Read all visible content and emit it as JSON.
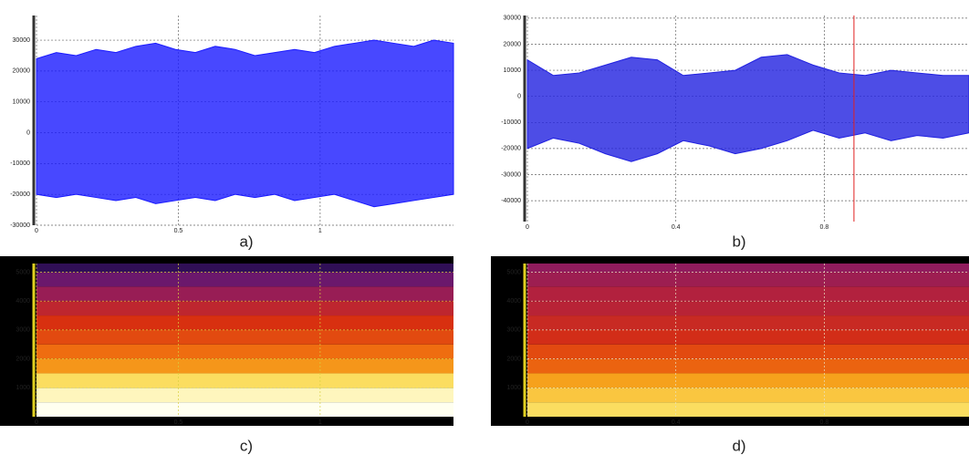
{
  "chart_data": [
    {
      "type": "waveform",
      "caption": "a)",
      "color": "#1a1aff",
      "x": [
        0,
        0.07,
        0.14,
        0.21,
        0.28,
        0.35,
        0.42,
        0.49,
        0.56,
        0.63,
        0.7,
        0.77,
        0.84,
        0.91,
        0.98,
        1.05,
        1.12,
        1.19,
        1.26,
        1.33,
        1.4,
        1.47
      ],
      "upper": [
        24000,
        26000,
        25000,
        27000,
        26000,
        28000,
        29000,
        27000,
        26000,
        28000,
        27000,
        25000,
        26000,
        27000,
        26000,
        28000,
        29000,
        30000,
        29000,
        28000,
        30000,
        29000
      ],
      "lower": [
        -20000,
        -21000,
        -20000,
        -21000,
        -22000,
        -21000,
        -23000,
        -22000,
        -21000,
        -22000,
        -20000,
        -21000,
        -20000,
        -22000,
        -21000,
        -20000,
        -22000,
        -24000,
        -23000,
        -22000,
        -21000,
        -20000
      ],
      "xlim": [
        0,
        1.47
      ],
      "xticks": [
        0,
        0.5,
        1
      ],
      "ylim": [
        -30000,
        38000
      ],
      "yticks": [
        -30000,
        -20000,
        -10000,
        0,
        10000,
        20000,
        30000
      ],
      "grid": true
    },
    {
      "type": "waveform",
      "caption": "b)",
      "color": "#2020e0",
      "x": [
        0,
        0.07,
        0.14,
        0.21,
        0.28,
        0.35,
        0.42,
        0.49,
        0.56,
        0.63,
        0.7,
        0.77,
        0.84,
        0.91,
        0.98,
        1.05,
        1.12,
        1.19
      ],
      "upper": [
        14000,
        8000,
        9000,
        12000,
        15000,
        14000,
        8000,
        9000,
        10000,
        15000,
        16000,
        12000,
        9000,
        8000,
        10000,
        9000,
        8000,
        8000
      ],
      "lower": [
        -20000,
        -16000,
        -18000,
        -22000,
        -25000,
        -22000,
        -17000,
        -19000,
        -22000,
        -20000,
        -17000,
        -13000,
        -16000,
        -14000,
        -17000,
        -15000,
        -16000,
        -14000
      ],
      "cursor": 0.88,
      "cursor_color": "#e02020",
      "xlim": [
        0,
        1.19
      ],
      "xticks": [
        0,
        0.4,
        0.8
      ],
      "ylim": [
        -48000,
        31000
      ],
      "yticks": [
        -40000,
        -30000,
        -20000,
        -10000,
        0,
        10000,
        20000,
        30000
      ],
      "grid": true
    },
    {
      "type": "spectrogram",
      "caption": "c)",
      "grid_color": "#d8d040",
      "colormap": [
        "#0a0a30",
        "#3a1060",
        "#7a1a70",
        "#b02040",
        "#d83010",
        "#f07010",
        "#f8b020",
        "#fce870",
        "#fffff0"
      ],
      "bands": [
        0,
        500,
        1000,
        1500,
        2000,
        2500,
        3000,
        3500,
        4000,
        4500,
        5000,
        5300
      ],
      "intensity": [
        1.0,
        0.95,
        0.85,
        0.7,
        0.62,
        0.55,
        0.5,
        0.42,
        0.32,
        0.22,
        0.1
      ],
      "xlim": [
        0,
        1.47
      ],
      "xticks": [
        0,
        0.5,
        1
      ],
      "ylim": [
        0,
        5300
      ],
      "yticks": [
        1000,
        2000,
        3000,
        4000,
        5000
      ],
      "grid": true
    },
    {
      "type": "spectrogram",
      "caption": "d)",
      "grid_color": "#e8e0c0",
      "colormap": [
        "#0a0a30",
        "#3a1060",
        "#7a1a70",
        "#b02040",
        "#d83010",
        "#f07010",
        "#f8b020",
        "#fce870",
        "#fffff0"
      ],
      "bands": [
        0,
        500,
        1000,
        1500,
        2000,
        2500,
        3000,
        3500,
        4000,
        4500,
        5000,
        5300
      ],
      "intensity": [
        0.85,
        0.8,
        0.72,
        0.6,
        0.55,
        0.48,
        0.45,
        0.4,
        0.38,
        0.33,
        0.3
      ],
      "xlim": [
        0,
        1.19
      ],
      "xticks": [
        0,
        0.4,
        0.8
      ],
      "ylim": [
        0,
        5300
      ],
      "yticks": [
        1000,
        2000,
        3000,
        4000,
        5000
      ],
      "grid": true
    }
  ]
}
